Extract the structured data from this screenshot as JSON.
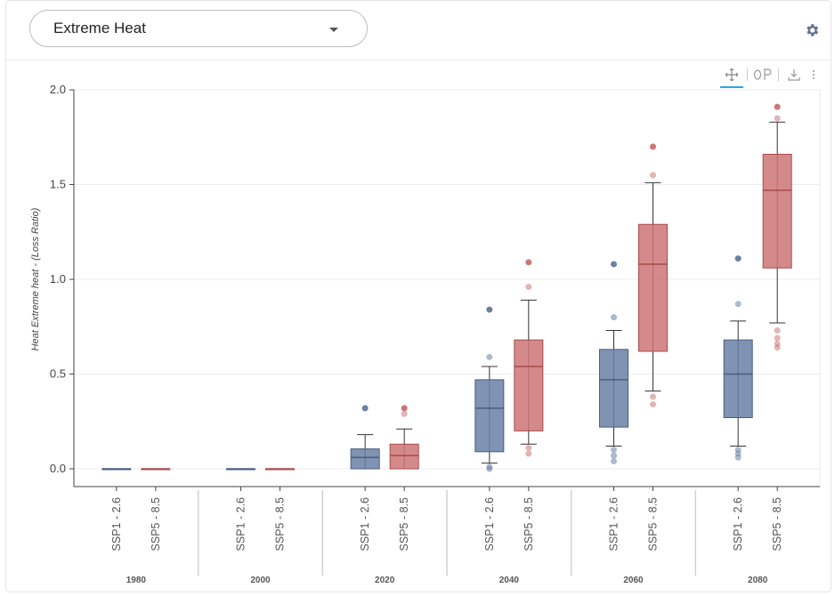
{
  "header": {
    "dropdown_value": "Extreme Heat"
  },
  "toolbar": {
    "pan_icon": "move-icon",
    "zoom_icon": "box-zoom-icon",
    "save_icon": "download-icon",
    "more_icon": "more-icon",
    "settings_icon": "gear-icon"
  },
  "colors": {
    "ssp1": "#6b80a6",
    "ssp5": "#cc7676",
    "ssp1_line": "#4a5d80",
    "ssp5_line": "#a84a4a"
  },
  "chart_data": {
    "type": "boxplot",
    "title": "",
    "xlabel": "",
    "ylabel": "Heat Extreme heat - (Loss Ratio)",
    "ylim": [
      0,
      2.0
    ],
    "yticks": [
      "0.0",
      "0.5",
      "1.0",
      "1.5",
      "2.0"
    ],
    "ytick_values": [
      0,
      0.5,
      1.0,
      1.5,
      2.0
    ],
    "groups": [
      "1980",
      "2000",
      "2020",
      "2040",
      "2060",
      "2080"
    ],
    "categories": [
      "SSP1 - 2.6",
      "SSP5 - 8.5"
    ],
    "series": [
      {
        "name": "SSP1 - 2.6",
        "boxes": [
          {
            "group": "1980",
            "whisker_low": 0,
            "q1": 0,
            "median": 0,
            "q3": 0,
            "whisker_high": 0,
            "outliers": []
          },
          {
            "group": "2000",
            "whisker_low": 0,
            "q1": 0,
            "median": 0,
            "q3": 0,
            "whisker_high": 0,
            "outliers": []
          },
          {
            "group": "2020",
            "whisker_low": 0,
            "q1": 0.0,
            "median": 0.06,
            "q3": 0.105,
            "whisker_high": 0.18,
            "outliers": [
              0.32
            ]
          },
          {
            "group": "2040",
            "whisker_low": 0.03,
            "q1": 0.09,
            "median": 0.32,
            "q3": 0.47,
            "whisker_high": 0.54,
            "outliers": [
              0.84,
              0.59,
              0.01,
              0.0
            ]
          },
          {
            "group": "2060",
            "whisker_low": 0.12,
            "q1": 0.22,
            "median": 0.47,
            "q3": 0.63,
            "whisker_high": 0.73,
            "outliers": [
              1.08,
              0.8,
              0.1,
              0.07,
              0.04
            ]
          },
          {
            "group": "2080",
            "whisker_low": 0.12,
            "q1": 0.27,
            "median": 0.5,
            "q3": 0.68,
            "whisker_high": 0.78,
            "outliers": [
              1.11,
              0.87,
              0.1,
              0.08,
              0.06
            ]
          }
        ]
      },
      {
        "name": "SSP5 - 8.5",
        "boxes": [
          {
            "group": "1980",
            "whisker_low": 0,
            "q1": 0,
            "median": 0,
            "q3": 0,
            "whisker_high": 0,
            "outliers": []
          },
          {
            "group": "2000",
            "whisker_low": 0,
            "q1": 0,
            "median": 0,
            "q3": 0,
            "whisker_high": 0,
            "outliers": []
          },
          {
            "group": "2020",
            "whisker_low": 0,
            "q1": 0.0,
            "median": 0.07,
            "q3": 0.13,
            "whisker_high": 0.21,
            "outliers": [
              0.32,
              0.29
            ]
          },
          {
            "group": "2040",
            "whisker_low": 0.13,
            "q1": 0.2,
            "median": 0.54,
            "q3": 0.68,
            "whisker_high": 0.89,
            "outliers": [
              1.09,
              0.96,
              0.11,
              0.08
            ]
          },
          {
            "group": "2060",
            "whisker_low": 0.41,
            "q1": 0.62,
            "median": 1.08,
            "q3": 1.29,
            "whisker_high": 1.51,
            "outliers": [
              1.7,
              1.55,
              0.38,
              0.34
            ]
          },
          {
            "group": "2080",
            "whisker_low": 0.77,
            "q1": 1.06,
            "median": 1.47,
            "q3": 1.66,
            "whisker_high": 1.83,
            "outliers": [
              1.91,
              1.85,
              0.73,
              0.69,
              0.66,
              0.64
            ]
          }
        ]
      }
    ],
    "grid": true,
    "legend": "none"
  }
}
